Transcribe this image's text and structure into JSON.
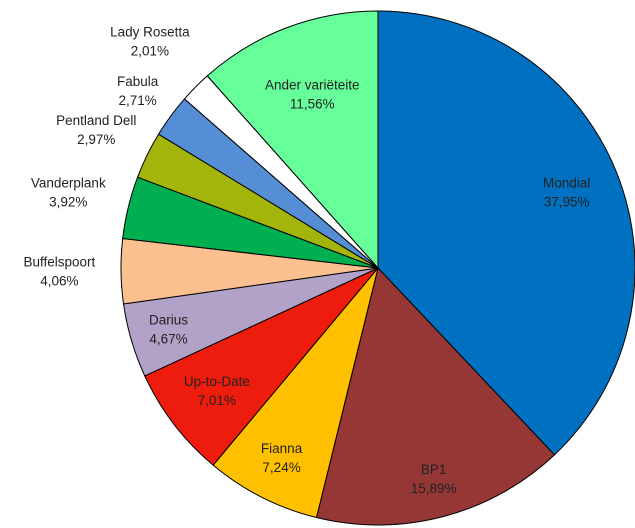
{
  "chart_data": {
    "type": "pie",
    "categories": [
      "Mondial",
      "BP1",
      "Fianna",
      "Up-to-Date",
      "Darius",
      "Buffelspoort",
      "Vanderplank",
      "Pentland Dell",
      "Fabula",
      "Lady Rosetta",
      "Ander variëteite"
    ],
    "values": [
      37.95,
      15.89,
      7.24,
      7.01,
      4.67,
      4.06,
      3.92,
      2.97,
      2.71,
      2.01,
      11.56
    ],
    "value_labels": [
      "37,95%",
      "15,89%",
      "7,24%",
      "7,01%",
      "4,67%",
      "4,06%",
      "3,92%",
      "2,97%",
      "2,71%",
      "2,01%",
      "11,56%"
    ],
    "colors": [
      "#0070c0",
      "#953735",
      "#ffc000",
      "#ee1c0c",
      "#b3a2c7",
      "#fac090",
      "#00b050",
      "#a3b40a",
      "#558ed5",
      "#ffffff",
      "#66ff99"
    ]
  }
}
